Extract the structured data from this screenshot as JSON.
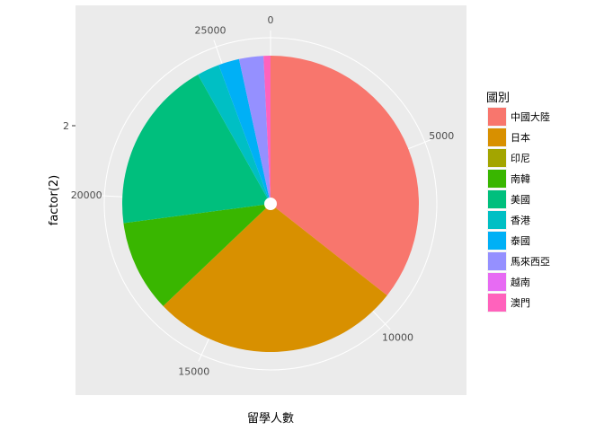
{
  "chart_data": {
    "type": "pie",
    "coord": "polar",
    "xlabel": "留學人數",
    "ylabel": "factor(2)",
    "y_tick_labels": [
      "2"
    ],
    "theta_ticks": [
      0,
      5000,
      10000,
      15000,
      20000,
      25000
    ],
    "total": 26400,
    "legend": {
      "title": "國別",
      "position": "right"
    },
    "grid": true,
    "slices": [
      {
        "name": "中國大陸",
        "value": 9400,
        "color": "#F8766D"
      },
      {
        "name": "日本",
        "value": 7200,
        "color": "#D89000"
      },
      {
        "name": "印尼",
        "value": 0,
        "color": "#A3A500"
      },
      {
        "name": "南韓",
        "value": 2650,
        "color": "#39B600"
      },
      {
        "name": "美國",
        "value": 5000,
        "color": "#00BF7D"
      },
      {
        "name": "香港",
        "value": 650,
        "color": "#00BFC4"
      },
      {
        "name": "泰國",
        "value": 600,
        "color": "#00B0F6"
      },
      {
        "name": "馬來西亞",
        "value": 700,
        "color": "#9590FF"
      },
      {
        "name": "越南",
        "value": 0,
        "color": "#E76BF3"
      },
      {
        "name": "澳門",
        "value": 200,
        "color": "#FF62BC"
      }
    ]
  }
}
